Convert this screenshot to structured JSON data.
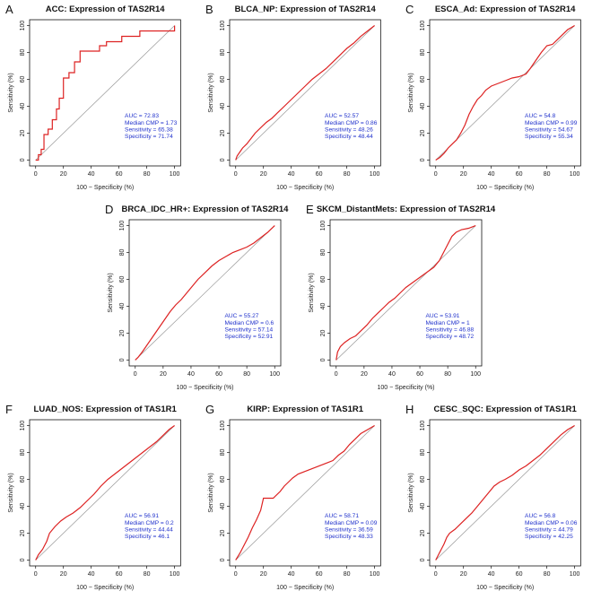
{
  "figure": {
    "xlabel": "100 − Specificity (%)",
    "ylabel": "Sensitivity (%)",
    "stat_labels": {
      "auc": "AUC = ",
      "median_cmp": "Median CMP = ",
      "sensitivity": "Sensitivity = ",
      "specificity": "Specificity = "
    }
  },
  "chart_data": [
    {
      "panel": "A",
      "type": "line",
      "title": "ACC: Expression of TAS2R14",
      "xlim": [
        0,
        100
      ],
      "ylim": [
        0,
        100
      ],
      "xticks": [
        0,
        20,
        40,
        60,
        80,
        100
      ],
      "yticks": [
        0,
        20,
        40,
        60,
        80,
        100
      ],
      "stats": {
        "auc": "72.83",
        "median_cmp": "1.73",
        "sensitivity": "65.38",
        "specificity": "71.74"
      },
      "colors": {
        "roc": "#dd2222",
        "diagonal": "#999999"
      },
      "roc": {
        "x": [
          0,
          2,
          2,
          4,
          4,
          6,
          6,
          9,
          9,
          12,
          12,
          15,
          15,
          17,
          17,
          20,
          20,
          24,
          24,
          28,
          28,
          32,
          32,
          37,
          37,
          46,
          46,
          51,
          51,
          56,
          56,
          62,
          62,
          75,
          75,
          100,
          100
        ],
        "y": [
          0,
          0,
          4,
          4,
          8,
          8,
          19,
          19,
          23,
          23,
          30,
          30,
          38,
          38,
          46,
          46,
          61,
          61,
          65,
          65,
          73,
          73,
          81,
          81,
          81,
          81,
          85,
          85,
          88,
          88,
          88,
          88,
          92,
          92,
          96,
          96,
          100
        ]
      }
    },
    {
      "panel": "B",
      "type": "line",
      "title": "BLCA_NP: Expression of TAS2R14",
      "xlim": [
        0,
        100
      ],
      "ylim": [
        0,
        100
      ],
      "xticks": [
        0,
        20,
        40,
        60,
        80,
        100
      ],
      "yticks": [
        0,
        20,
        40,
        60,
        80,
        100
      ],
      "stats": {
        "auc": "52.57",
        "median_cmp": "0.86",
        "sensitivity": "48.26",
        "specificity": "48.44"
      },
      "colors": {
        "roc": "#dd2222",
        "diagonal": "#999999"
      },
      "roc": {
        "x": [
          0,
          1,
          3,
          5,
          8,
          11,
          14,
          18,
          22,
          26,
          30,
          35,
          40,
          45,
          50,
          55,
          60,
          65,
          70,
          75,
          80,
          85,
          90,
          95,
          100
        ],
        "y": [
          0,
          3,
          6,
          9,
          12,
          16,
          20,
          24,
          28,
          31,
          35,
          40,
          45,
          50,
          55,
          60,
          64,
          68,
          73,
          78,
          83,
          87,
          92,
          96,
          100
        ]
      }
    },
    {
      "panel": "C",
      "type": "line",
      "title": "ESCA_Ad: Expression of TAS2R14",
      "xlim": [
        0,
        100
      ],
      "ylim": [
        0,
        100
      ],
      "xticks": [
        0,
        20,
        40,
        60,
        80,
        100
      ],
      "yticks": [
        0,
        20,
        40,
        60,
        80,
        100
      ],
      "stats": {
        "auc": "54.8",
        "median_cmp": "0.99",
        "sensitivity": "54.67",
        "specificity": "55.34"
      },
      "colors": {
        "roc": "#dd2222",
        "diagonal": "#999999"
      },
      "roc": {
        "x": [
          0,
          3,
          6,
          9,
          12,
          15,
          18,
          21,
          24,
          27,
          30,
          33,
          36,
          40,
          45,
          50,
          55,
          60,
          65,
          68,
          72,
          76,
          80,
          84,
          88,
          92,
          95,
          100
        ],
        "y": [
          0,
          2,
          5,
          9,
          12,
          15,
          20,
          26,
          34,
          40,
          45,
          48,
          52,
          55,
          57,
          59,
          61,
          62,
          64,
          68,
          74,
          80,
          85,
          86,
          90,
          94,
          97,
          100
        ]
      }
    },
    {
      "panel": "D",
      "type": "line",
      "title": "BRCA_IDC_HR+: Expression of TAS2R14",
      "xlim": [
        0,
        100
      ],
      "ylim": [
        0,
        100
      ],
      "xticks": [
        0,
        20,
        40,
        60,
        80,
        100
      ],
      "yticks": [
        0,
        20,
        40,
        60,
        80,
        100
      ],
      "stats": {
        "auc": "55.27",
        "median_cmp": "0.6",
        "sensitivity": "57.14",
        "specificity": "52.91"
      },
      "colors": {
        "roc": "#dd2222",
        "diagonal": "#999999"
      },
      "roc": {
        "x": [
          0,
          2,
          5,
          9,
          13,
          17,
          21,
          25,
          29,
          33,
          37,
          41,
          45,
          50,
          55,
          60,
          65,
          70,
          75,
          80,
          85,
          90,
          95,
          100
        ],
        "y": [
          0,
          2,
          6,
          12,
          18,
          24,
          30,
          36,
          41,
          45,
          50,
          55,
          60,
          65,
          70,
          74,
          77,
          80,
          82,
          84,
          87,
          91,
          95,
          100
        ]
      }
    },
    {
      "panel": "E",
      "type": "line",
      "title": "SKCM_DistantMets: Expression of TAS2R14",
      "xlim": [
        0,
        100
      ],
      "ylim": [
        0,
        100
      ],
      "xticks": [
        0,
        20,
        40,
        60,
        80,
        100
      ],
      "yticks": [
        0,
        20,
        40,
        60,
        80,
        100
      ],
      "stats": {
        "auc": "53.91",
        "median_cmp": "1",
        "sensitivity": "46.88",
        "specificity": "48.72"
      },
      "colors": {
        "roc": "#dd2222",
        "diagonal": "#999999"
      },
      "roc": {
        "x": [
          0,
          1,
          3,
          6,
          10,
          14,
          18,
          22,
          26,
          30,
          34,
          38,
          42,
          46,
          50,
          54,
          58,
          62,
          66,
          70,
          74,
          77,
          80,
          83,
          86,
          90,
          95,
          100
        ],
        "y": [
          0,
          6,
          10,
          13,
          16,
          18,
          22,
          26,
          31,
          35,
          39,
          43,
          46,
          50,
          54,
          57,
          60,
          63,
          66,
          69,
          74,
          80,
          86,
          92,
          95,
          97,
          98,
          100
        ]
      }
    },
    {
      "panel": "F",
      "type": "line",
      "title": "LUAD_NOS: Expression of TAS1R1",
      "xlim": [
        0,
        100
      ],
      "ylim": [
        0,
        100
      ],
      "xticks": [
        0,
        20,
        40,
        60,
        80,
        100
      ],
      "yticks": [
        0,
        20,
        40,
        60,
        80,
        100
      ],
      "stats": {
        "auc": "56.91",
        "median_cmp": "0.2",
        "sensitivity": "44.44",
        "specificity": "46.1"
      },
      "colors": {
        "roc": "#dd2222",
        "diagonal": "#999999"
      },
      "roc": {
        "x": [
          0,
          2,
          5,
          8,
          10,
          14,
          18,
          22,
          27,
          32,
          37,
          42,
          47,
          52,
          57,
          62,
          67,
          72,
          77,
          82,
          87,
          92,
          96,
          100
        ],
        "y": [
          0,
          4,
          8,
          14,
          20,
          25,
          29,
          32,
          35,
          39,
          44,
          49,
          55,
          60,
          64,
          68,
          72,
          76,
          80,
          84,
          88,
          93,
          97,
          100
        ]
      }
    },
    {
      "panel": "G",
      "type": "line",
      "title": "KIRP: Expression of TAS1R1",
      "xlim": [
        0,
        100
      ],
      "ylim": [
        0,
        100
      ],
      "xticks": [
        0,
        20,
        40,
        60,
        80,
        100
      ],
      "yticks": [
        0,
        20,
        40,
        60,
        80,
        100
      ],
      "stats": {
        "auc": "58.71",
        "median_cmp": "0.09",
        "sensitivity": "36.59",
        "specificity": "48.33"
      },
      "colors": {
        "roc": "#dd2222",
        "diagonal": "#999999"
      },
      "roc": {
        "x": [
          0,
          3,
          6,
          9,
          12,
          15,
          18,
          20,
          22,
          27,
          32,
          35,
          38,
          41,
          45,
          50,
          55,
          60,
          65,
          70,
          74,
          78,
          82,
          86,
          90,
          95,
          100
        ],
        "y": [
          0,
          5,
          11,
          17,
          24,
          30,
          37,
          46,
          46,
          46,
          51,
          55,
          58,
          61,
          64,
          66,
          68,
          70,
          72,
          74,
          78,
          81,
          86,
          90,
          94,
          97,
          100
        ]
      }
    },
    {
      "panel": "H",
      "type": "line",
      "title": "CESC_SQC: Expression of TAS1R1",
      "xlim": [
        0,
        100
      ],
      "ylim": [
        0,
        100
      ],
      "xticks": [
        0,
        20,
        40,
        60,
        80,
        100
      ],
      "yticks": [
        0,
        20,
        40,
        60,
        80,
        100
      ],
      "stats": {
        "auc": "56.8",
        "median_cmp": "0.06",
        "sensitivity": "44.79",
        "specificity": "42.25"
      },
      "colors": {
        "roc": "#dd2222",
        "diagonal": "#999999"
      },
      "roc": {
        "x": [
          0,
          2,
          4,
          6,
          8,
          10,
          14,
          18,
          22,
          26,
          30,
          34,
          38,
          42,
          46,
          50,
          55,
          60,
          65,
          70,
          75,
          80,
          85,
          90,
          95,
          100
        ],
        "y": [
          0,
          4,
          8,
          12,
          17,
          20,
          23,
          27,
          31,
          35,
          40,
          45,
          50,
          55,
          58,
          60,
          63,
          67,
          70,
          74,
          78,
          83,
          88,
          93,
          97,
          100
        ]
      }
    }
  ]
}
